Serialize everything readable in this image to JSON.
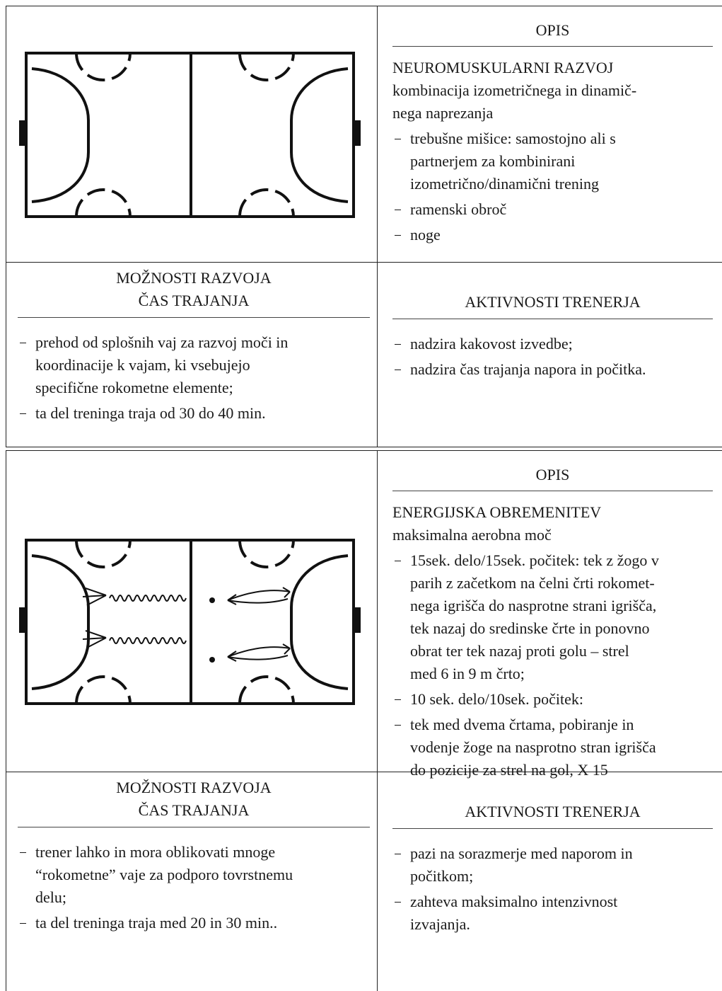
{
  "cards": [
    {
      "description": {
        "heading": "OPIS",
        "title": "NEUROMUSKULARNI RAZVOJ",
        "intro": [
          "kombinacija izometričnega in dinamič-",
          "nega naprezanja"
        ],
        "items": [
          [
            "trebušne mišice: samostojno ali s",
            "partnerjem za kombinirani",
            "izometrično/dinamični trening"
          ],
          [
            "ramenski obroč"
          ],
          [
            "noge"
          ]
        ]
      },
      "development": {
        "heading": [
          "MOŽNOSTI RAZVOJA",
          "ČAS TRAJANJA"
        ],
        "items": [
          [
            "prehod od splošnih vaj za razvoj moči in",
            "koordinacije k vajam, ki vsebujejo",
            "specifične rokometne elemente;"
          ],
          [
            "ta del treninga traja od 30 do 40 min."
          ]
        ]
      },
      "coach": {
        "heading": "AKTIVNOSTI TRENERJA",
        "items": [
          [
            "nadzira kakovost izvedbe;"
          ],
          [
            "nadzira čas trajanja napora in počitka."
          ]
        ]
      }
    },
    {
      "description": {
        "heading": "OPIS",
        "title": "ENERGIJSKA OBREMENITEV",
        "intro": [
          "maksimalna aerobna moč"
        ],
        "items": [
          [
            "15sek. delo/15sek. počitek: tek z žogo v",
            "parih z začetkom na čelni črti rokomet-",
            "nega igrišča do nasprotne strani igrišča,",
            "tek nazaj do sredinske črte in ponovno",
            "obrat ter tek nazaj proti golu – strel",
            "med 6 in 9 m črto;"
          ],
          [
            "10 sek. delo/10sek. počitek:"
          ],
          [
            "tek med dvema črtama, pobiranje in",
            "vodenje žoge na nasprotno stran igrišča",
            "do pozicije za strel na gol, X 15"
          ]
        ]
      },
      "development": {
        "heading": [
          "MOŽNOSTI RAZVOJA",
          "ČAS TRAJANJA"
        ],
        "items": [
          [
            "trener lahko in mora oblikovati mnoge",
            "“rokometne” vaje za podporo tovrstnemu",
            "delu;"
          ],
          [
            "ta del treninga traja med 20 in 30 min.."
          ]
        ]
      },
      "coach": {
        "heading": "AKTIVNOSTI TRENERJA",
        "items": [
          [
            "pazi na sorazmerje med naporom in",
            "počitkom;"
          ],
          [
            "zahteva maksimalno intenzivnost",
            "izvajanja."
          ]
        ]
      }
    }
  ]
}
